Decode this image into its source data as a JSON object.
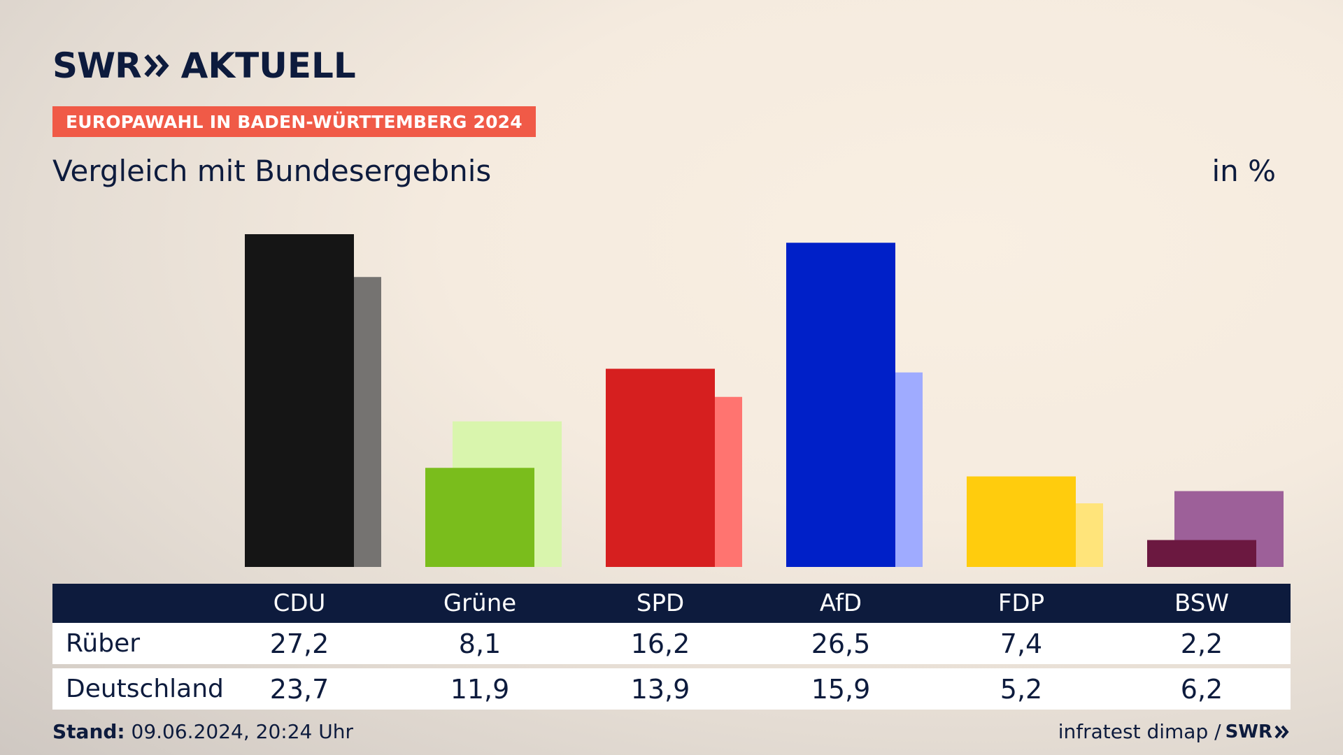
{
  "brand": {
    "logo_text": "SWR",
    "logo_suffix": "AKTUELL",
    "badge": "EUROPAWAHL IN BADEN-WÜRTTEMBERG 2024",
    "accent_color": "#f05a47",
    "navy_color": "#0d1b3d"
  },
  "header": {
    "subtitle": "Vergleich mit Bundesergebnis",
    "unit": "in %"
  },
  "chart_data": {
    "type": "bar",
    "categories": [
      "CDU",
      "Grüne",
      "SPD",
      "AfD",
      "FDP",
      "BSW"
    ],
    "series": [
      {
        "name": "Rüber",
        "values": [
          27.2,
          8.1,
          16.2,
          26.5,
          7.4,
          2.2
        ],
        "colors": [
          "#151515",
          "#7abd1c",
          "#d61f1f",
          "#0020c8",
          "#ffcc0d",
          "#6b1840"
        ]
      },
      {
        "name": "Deutschland",
        "values": [
          23.7,
          11.9,
          13.9,
          15.9,
          5.2,
          6.2
        ],
        "colors": [
          "#757371",
          "#d9f5ad",
          "#ff7470",
          "#9fabff",
          "#ffe47a",
          "#9d6099"
        ]
      }
    ],
    "value_labels": {
      "Rüber": [
        "27,2",
        "8,1",
        "16,2",
        "26,5",
        "7,4",
        "2,2"
      ],
      "Deutschland": [
        "23,7",
        "11,9",
        "13,9",
        "15,9",
        "5,2",
        "6,2"
      ]
    },
    "ylim": [
      0,
      28
    ],
    "grid": false
  },
  "footer": {
    "stand_label": "Stand:",
    "stand_value": " 09.06.2024, 20:24 Uhr",
    "source": "infratest dimap /",
    "source_brand": "SWR"
  }
}
